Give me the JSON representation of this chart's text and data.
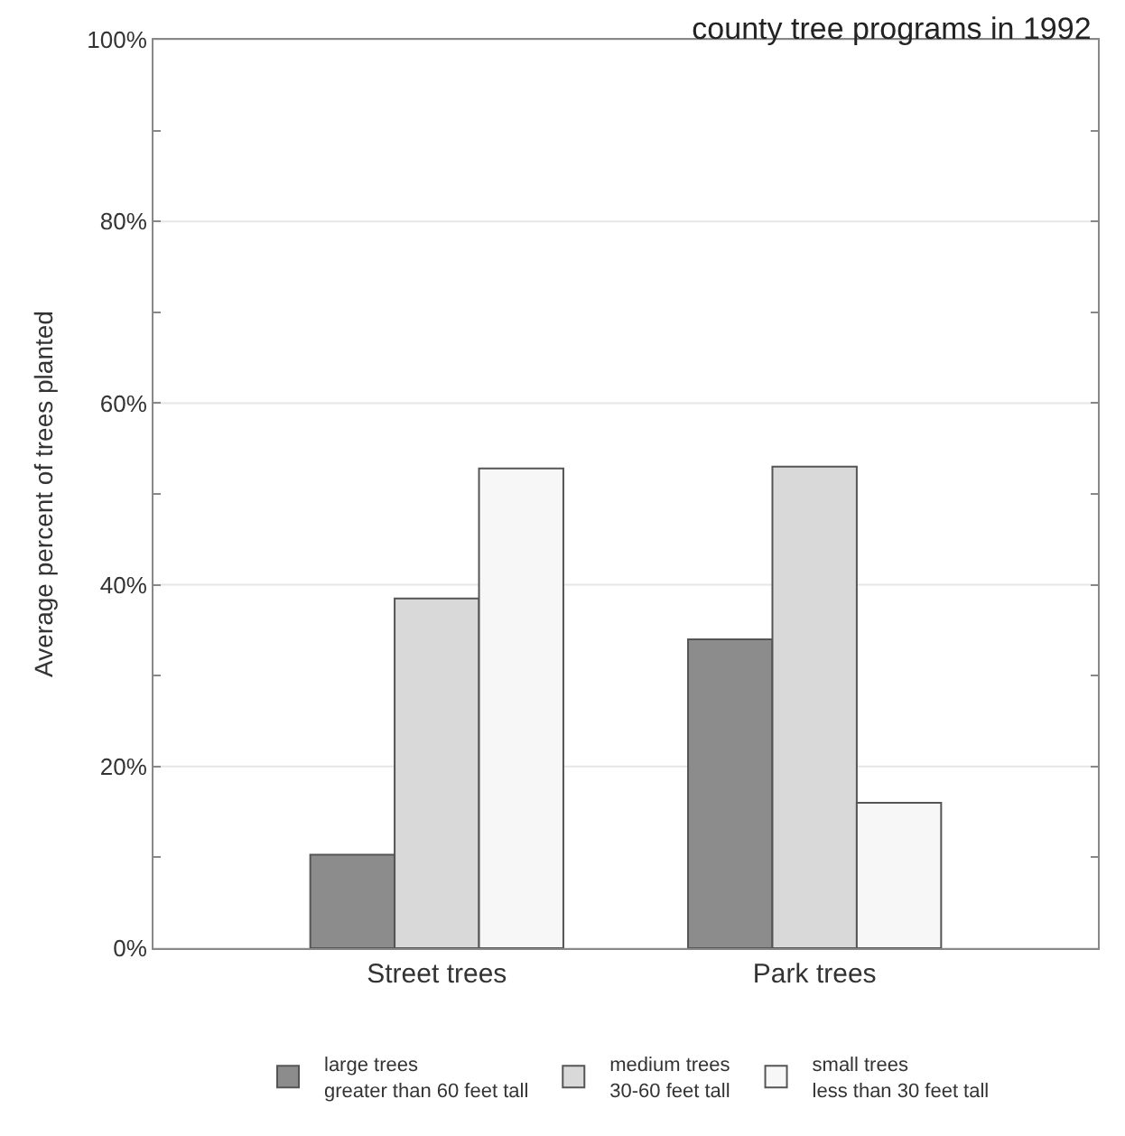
{
  "chart_data": {
    "type": "bar",
    "title": "county tree programs in 1992",
    "ylabel": "Average percent of trees planted",
    "categories": [
      "Street trees",
      "Park trees"
    ],
    "series": [
      {
        "name": "large trees\ngreater than 60 feet tall",
        "color": "#8c8c8c",
        "values": [
          10.3,
          34
        ]
      },
      {
        "name": "medium trees\n30-60 feet tall",
        "color": "#d9d9d9",
        "values": [
          38.5,
          53
        ]
      },
      {
        "name": "small trees\nless than 30 feet tall",
        "color": "#f7f7f7",
        "values": [
          52.8,
          16
        ]
      }
    ],
    "ylim": [
      0,
      100
    ],
    "yticks": [
      {
        "value": 0,
        "label": "0%"
      },
      {
        "value": 10,
        "label": null
      },
      {
        "value": 20,
        "label": "20%"
      },
      {
        "value": 30,
        "label": null
      },
      {
        "value": 40,
        "label": "40%"
      },
      {
        "value": 50,
        "label": null
      },
      {
        "value": 60,
        "label": "60%"
      },
      {
        "value": 70,
        "label": null
      },
      {
        "value": 80,
        "label": "80%"
      },
      {
        "value": 90,
        "label": null
      },
      {
        "value": 100,
        "label": "100%"
      }
    ],
    "grid": "y",
    "legend": "bottom"
  }
}
